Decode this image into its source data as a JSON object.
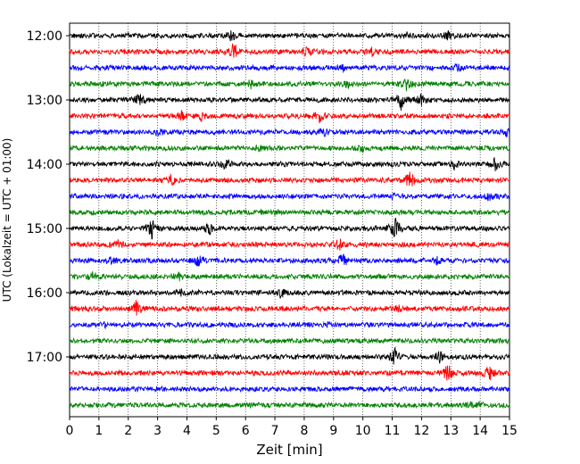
{
  "chart_data": {
    "type": "line",
    "title": "",
    "xlabel": "Zeit  [min]",
    "ylabel": "UTC (Lokalzeit = UTC + 01:00)",
    "xlim": [
      0,
      15
    ],
    "x_ticks": [
      "0",
      "1",
      "2",
      "3",
      "4",
      "5",
      "6",
      "7",
      "8",
      "9",
      "10",
      "11",
      "12",
      "13",
      "14",
      "15"
    ],
    "y_ticks": [
      "12:00",
      "13:00",
      "14:00",
      "15:00",
      "16:00",
      "17:00"
    ],
    "grid": "vertical dotted",
    "trace_colors": [
      "#000000",
      "#ff0000",
      "#0000ff",
      "#008000"
    ],
    "series": [
      {
        "start": "12:00",
        "color": "#000000",
        "events": [
          {
            "t": 5.5,
            "a": 1.0
          },
          {
            "t": 11.5,
            "a": 0.6
          },
          {
            "t": 12.9,
            "a": 0.8
          }
        ]
      },
      {
        "start": "12:15",
        "color": "#ff0000",
        "events": [
          {
            "t": 5.6,
            "a": 2.2
          },
          {
            "t": 8.1,
            "a": 0.7
          },
          {
            "t": 10.3,
            "a": 0.6
          }
        ]
      },
      {
        "start": "12:30",
        "color": "#0000ff",
        "events": [
          {
            "t": 13.2,
            "a": 0.7
          },
          {
            "t": 9.3,
            "a": 0.5
          }
        ]
      },
      {
        "start": "12:45",
        "color": "#008000",
        "events": [
          {
            "t": 6.2,
            "a": 1.1
          },
          {
            "t": 9.5,
            "a": 0.8
          },
          {
            "t": 11.5,
            "a": 1.3
          }
        ]
      },
      {
        "start": "13:00",
        "color": "#000000",
        "events": [
          {
            "t": 2.4,
            "a": 1.6
          },
          {
            "t": 11.3,
            "a": 2.2
          },
          {
            "t": 12.0,
            "a": 1.8
          }
        ]
      },
      {
        "start": "13:15",
        "color": "#ff0000",
        "events": [
          {
            "t": 3.8,
            "a": 1.0
          },
          {
            "t": 4.5,
            "a": 0.8
          },
          {
            "t": 8.5,
            "a": 1.5
          }
        ]
      },
      {
        "start": "13:30",
        "color": "#0000ff",
        "events": [
          {
            "t": 3.0,
            "a": 0.6
          },
          {
            "t": 8.7,
            "a": 0.6
          },
          {
            "t": 14.9,
            "a": 0.7
          }
        ]
      },
      {
        "start": "13:45",
        "color": "#008000",
        "events": [
          {
            "t": 6.5,
            "a": 0.7
          },
          {
            "t": 10.0,
            "a": 0.5
          }
        ]
      },
      {
        "start": "14:00",
        "color": "#000000",
        "events": [
          {
            "t": 5.3,
            "a": 1.1
          },
          {
            "t": 13.1,
            "a": 0.8
          },
          {
            "t": 14.5,
            "a": 1.4
          }
        ]
      },
      {
        "start": "14:15",
        "color": "#ff0000",
        "events": [
          {
            "t": 3.4,
            "a": 1.7
          },
          {
            "t": 11.6,
            "a": 2.0
          }
        ]
      },
      {
        "start": "14:30",
        "color": "#0000ff",
        "events": [
          {
            "t": 14.3,
            "a": 0.7
          },
          {
            "t": 11.0,
            "a": 0.4
          }
        ]
      },
      {
        "start": "14:45",
        "color": "#008000",
        "events": [
          {
            "t": 7.0,
            "a": 0.4
          }
        ]
      },
      {
        "start": "15:00",
        "color": "#000000",
        "events": [
          {
            "t": 2.8,
            "a": 2.2
          },
          {
            "t": 4.8,
            "a": 1.5
          },
          {
            "t": 11.1,
            "a": 2.5
          }
        ]
      },
      {
        "start": "15:15",
        "color": "#ff0000",
        "events": [
          {
            "t": 1.6,
            "a": 1.0
          },
          {
            "t": 9.2,
            "a": 1.2
          }
        ]
      },
      {
        "start": "15:30",
        "color": "#0000ff",
        "events": [
          {
            "t": 4.4,
            "a": 1.5
          },
          {
            "t": 9.3,
            "a": 1.5
          },
          {
            "t": 1.4,
            "a": 0.8
          },
          {
            "t": 12.5,
            "a": 0.7
          }
        ]
      },
      {
        "start": "15:45",
        "color": "#008000",
        "events": [
          {
            "t": 0.8,
            "a": 1.2
          },
          {
            "t": 3.7,
            "a": 0.8
          }
        ]
      },
      {
        "start": "16:00",
        "color": "#000000",
        "events": [
          {
            "t": 7.2,
            "a": 0.9
          },
          {
            "t": 3.8,
            "a": 0.5
          }
        ]
      },
      {
        "start": "16:15",
        "color": "#ff0000",
        "events": [
          {
            "t": 2.3,
            "a": 2.0
          },
          {
            "t": 11.2,
            "a": 0.6
          }
        ]
      },
      {
        "start": "16:30",
        "color": "#0000ff",
        "events": [
          {
            "t": 1.2,
            "a": 0.5
          },
          {
            "t": 8.8,
            "a": 0.3
          }
        ]
      },
      {
        "start": "16:45",
        "color": "#008000",
        "events": []
      },
      {
        "start": "17:00",
        "color": "#000000",
        "events": [
          {
            "t": 11.1,
            "a": 1.8
          },
          {
            "t": 12.6,
            "a": 1.3
          }
        ]
      },
      {
        "start": "17:15",
        "color": "#ff0000",
        "events": [
          {
            "t": 12.9,
            "a": 2.0
          },
          {
            "t": 14.3,
            "a": 2.2
          }
        ]
      },
      {
        "start": "17:30",
        "color": "#0000ff",
        "events": []
      },
      {
        "start": "17:45",
        "color": "#008000",
        "events": [
          {
            "t": 13.6,
            "a": 0.6
          },
          {
            "t": 14.0,
            "a": 0.5
          }
        ]
      }
    ]
  }
}
